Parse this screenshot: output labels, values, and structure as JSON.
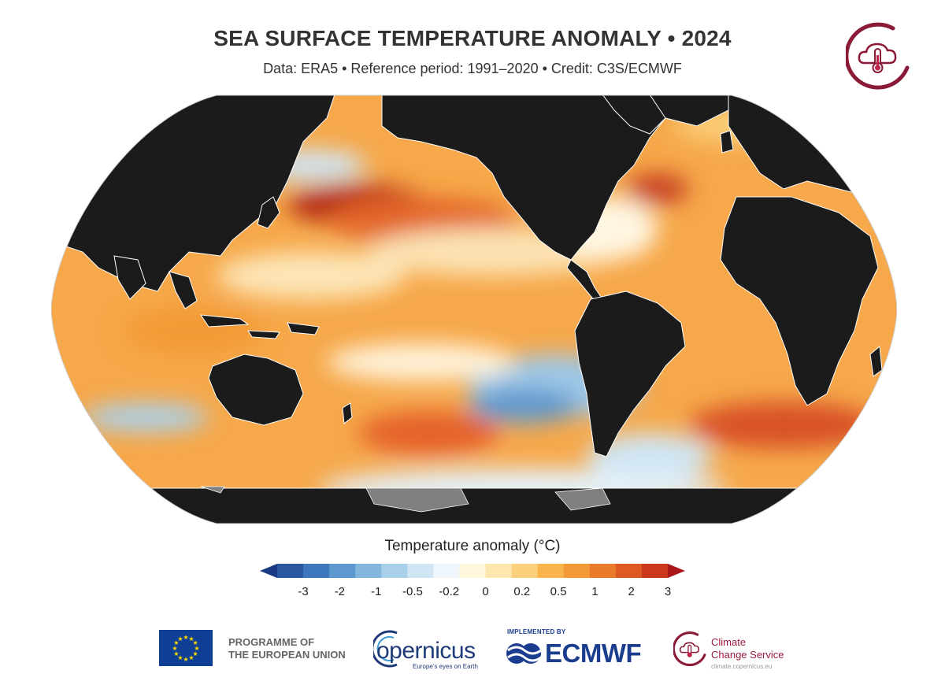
{
  "header": {
    "title": "SEA SURFACE TEMPERATURE ANOMALY • 2024",
    "subtitle": "Data: ERA5 • Reference period: 1991–2020 • Credit: C3S/ECMWF"
  },
  "map": {
    "projection": "Robinson (Pacific-centred)",
    "land_color": "#1b1b1b",
    "ice_color": "#808080"
  },
  "colorbar": {
    "title": "Temperature anomaly (°C)",
    "tick_labels": [
      "-3",
      "-2",
      "-1",
      "-0.5",
      "-0.2",
      "0",
      "0.2",
      "0.5",
      "1",
      "2",
      "3"
    ],
    "colors": [
      "#1a3a84",
      "#2c5aa0",
      "#3e78bc",
      "#5d98cf",
      "#83b6dd",
      "#a9d0ea",
      "#cfe5f3",
      "#eef6fb",
      "#fff6dc",
      "#fde7ae",
      "#fbd07c",
      "#f9b54c",
      "#f39a36",
      "#ea7b2a",
      "#dd5a22",
      "#c9381c",
      "#a9171a"
    ]
  },
  "logos": {
    "eu": "PROGRAMME OF\nTHE EUROPEAN UNION",
    "eu_line1": "PROGRAMME OF",
    "eu_line2": "THE EUROPEAN UNION",
    "copernicus": "opernicus",
    "copernicus_tagline": "Europe's eyes on Earth",
    "ecmwf_prefix": "IMPLEMENTED BY",
    "ecmwf": "ECMWF",
    "c3s_line1": "Climate",
    "c3s_line2": "Change Service",
    "c3s_url": "climate.copernicus.eu"
  }
}
